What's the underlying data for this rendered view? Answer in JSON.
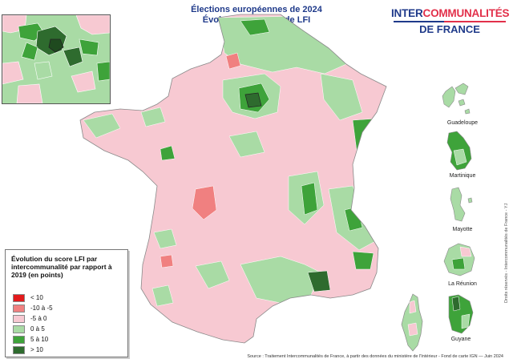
{
  "header": {
    "title_line1": "Élections européennes de 2024",
    "title_line2": "Évolution du score de LFI"
  },
  "logo": {
    "part1": "INTER",
    "part2": "COMMUNALITÉS",
    "line2": "DE FRANCE"
  },
  "colors": {
    "lt_m10": "#e31a1c",
    "m10_m5": "#f08080",
    "m5_0": "#f7c9d2",
    "p0_5": "#a9dba5",
    "p5_10": "#3ea33a",
    "gt_10": "#2e6b2e",
    "border": "#ffffff"
  },
  "legend": {
    "title": "Évolution du score LFI par intercommunalité par rapport à 2019 (en points)",
    "items": [
      {
        "label": "< 10",
        "color": "#e31a1c"
      },
      {
        "label": "-10 à -5",
        "color": "#f08080"
      },
      {
        "label": "-5 à 0",
        "color": "#f7c9d2"
      },
      {
        "label": "0 à 5",
        "color": "#a9dba5"
      },
      {
        "label": "5 à 10",
        "color": "#3ea33a"
      },
      {
        "label": "> 10",
        "color": "#2e6b2e"
      }
    ]
  },
  "territories": {
    "guadeloupe": "Guadeloupe",
    "martinique": "Martinique",
    "mayotte": "Mayotte",
    "reunion": "La Réunion",
    "guyane": "Guyane"
  },
  "footer": {
    "source": "Source : Traitement Intercommunalités de France,  à partir des données du ministère de l'Intérieur - Fond de carte IGN  — Juin 2024",
    "rights": "Droits réservés - Intercommunalités de France - YJ"
  }
}
